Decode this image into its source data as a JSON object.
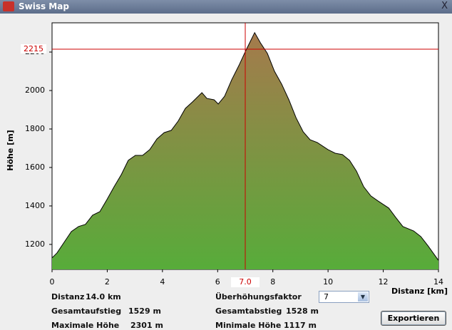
{
  "window": {
    "title": "Swiss Map",
    "close": "X"
  },
  "chart_data": {
    "type": "area",
    "ylabel": "Höhe [m]",
    "xlabel": "Distanz [km]",
    "x": [
      0,
      0.18,
      0.44,
      0.7,
      0.96,
      1.21,
      1.47,
      1.73,
      1.99,
      2.25,
      2.51,
      2.76,
      3.02,
      3.28,
      3.54,
      3.8,
      4.06,
      4.32,
      4.57,
      4.83,
      5.09,
      5.43,
      5.61,
      5.87,
      6.02,
      6.25,
      6.51,
      6.77,
      7.03,
      7.34,
      7.55,
      7.8,
      8.06,
      8.32,
      8.58,
      8.84,
      9.1,
      9.35,
      9.61,
      10.0,
      10.26,
      10.52,
      10.78,
      11.03,
      11.29,
      11.55,
      11.81,
      12.2,
      12.45,
      12.71,
      13.1,
      13.36,
      13.62,
      14
    ],
    "values": [
      1130,
      1156,
      1211,
      1267,
      1293,
      1304,
      1352,
      1370,
      1433,
      1500,
      1563,
      1637,
      1663,
      1663,
      1693,
      1748,
      1781,
      1793,
      1841,
      1907,
      1941,
      1989,
      1959,
      1952,
      1930,
      1970,
      2056,
      2130,
      2211,
      2301,
      2248,
      2193,
      2100,
      2033,
      1952,
      1859,
      1785,
      1744,
      1730,
      1693,
      1674,
      1667,
      1637,
      1581,
      1500,
      1452,
      1426,
      1389,
      1341,
      1293,
      1270,
      1241,
      1193,
      1117
    ],
    "color_top": "#a57a4c",
    "color_bottom": "#57ac3a",
    "line_color": "#000000",
    "xlim": [
      0,
      14
    ],
    "xticks": [
      0,
      2,
      4,
      6,
      8,
      10,
      12,
      14
    ],
    "ylim": [
      1070,
      2352
    ],
    "yticks": [
      1200,
      1400,
      1600,
      1800,
      2000,
      2200
    ],
    "crosshair": {
      "x": {
        "value": 7,
        "label": "7.0"
      },
      "y": 2215,
      "color": "#cc0000"
    }
  },
  "stats": {
    "left": [
      {
        "label": "Distanz",
        "value": "14.0 km"
      },
      {
        "label": "Gesamtaufstieg",
        "value": "1529 m"
      },
      {
        "label": "Maximale Höhe",
        "value": "2301 m"
      }
    ],
    "right": [
      {
        "label": "Überhöhungsfaktor"
      },
      {
        "label": "Gesamtabstieg",
        "value": "1528 m"
      },
      {
        "label": "Minimale Höhe",
        "value": "1117 m"
      }
    ]
  },
  "controls": {
    "factor": "7",
    "export": "Exportieren"
  }
}
